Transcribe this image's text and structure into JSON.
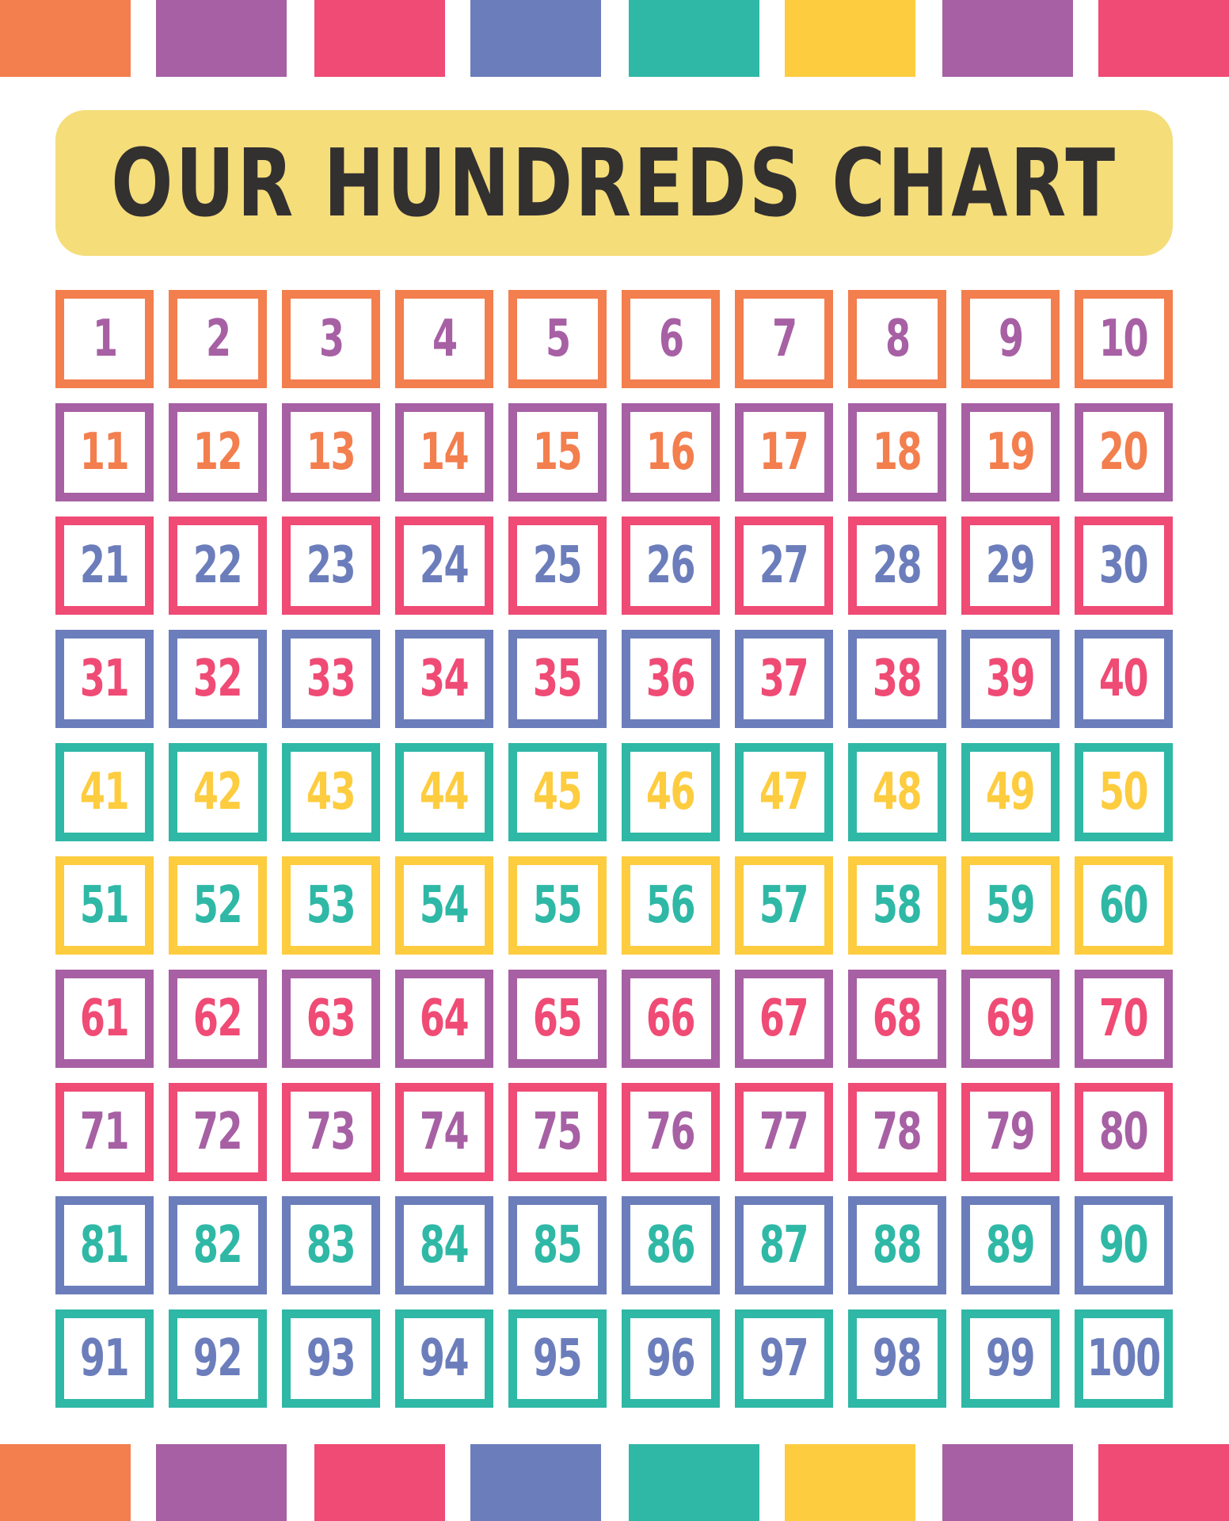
{
  "colors": {
    "orange": "#F37E4E",
    "purple": "#A760A4",
    "pink": "#EF4B75",
    "blue": "#6B7DBB",
    "teal": "#2FB8A6",
    "yellow": "#FDCC3F",
    "title_background": "#F5DD7A",
    "title_text": "#333030"
  },
  "decor_bars": [
    "#F37E4E",
    "#A760A4",
    "#EF4B75",
    "#6B7DBB",
    "#2FB8A6",
    "#FDCC3F",
    "#A760A4",
    "#EF4B75"
  ],
  "title": "OUR HUNDREDS CHART",
  "rows": [
    {
      "border": "#F37E4E",
      "text": "#A760A4",
      "numbers": [
        "1",
        "2",
        "3",
        "4",
        "5",
        "6",
        "7",
        "8",
        "9",
        "10"
      ]
    },
    {
      "border": "#A760A4",
      "text": "#F37E4E",
      "numbers": [
        "11",
        "12",
        "13",
        "14",
        "15",
        "16",
        "17",
        "18",
        "19",
        "20"
      ]
    },
    {
      "border": "#EF4B75",
      "text": "#6B7DBB",
      "numbers": [
        "21",
        "22",
        "23",
        "24",
        "25",
        "26",
        "27",
        "28",
        "29",
        "30"
      ]
    },
    {
      "border": "#6B7DBB",
      "text": "#EF4B75",
      "numbers": [
        "31",
        "32",
        "33",
        "34",
        "35",
        "36",
        "37",
        "38",
        "39",
        "40"
      ]
    },
    {
      "border": "#2FB8A6",
      "text": "#FDCC3F",
      "numbers": [
        "41",
        "42",
        "43",
        "44",
        "45",
        "46",
        "47",
        "48",
        "49",
        "50"
      ]
    },
    {
      "border": "#FDCC3F",
      "text": "#2FB8A6",
      "numbers": [
        "51",
        "52",
        "53",
        "54",
        "55",
        "56",
        "57",
        "58",
        "59",
        "60"
      ]
    },
    {
      "border": "#A760A4",
      "text": "#EF4B75",
      "numbers": [
        "61",
        "62",
        "63",
        "64",
        "65",
        "66",
        "67",
        "68",
        "69",
        "70"
      ]
    },
    {
      "border": "#EF4B75",
      "text": "#A760A4",
      "numbers": [
        "71",
        "72",
        "73",
        "74",
        "75",
        "76",
        "77",
        "78",
        "79",
        "80"
      ]
    },
    {
      "border": "#6B7DBB",
      "text": "#2FB8A6",
      "numbers": [
        "81",
        "82",
        "83",
        "84",
        "85",
        "86",
        "87",
        "88",
        "89",
        "90"
      ]
    },
    {
      "border": "#2FB8A6",
      "text": "#6B7DBB",
      "numbers": [
        "91",
        "92",
        "93",
        "94",
        "95",
        "96",
        "97",
        "98",
        "99",
        "100"
      ]
    }
  ]
}
